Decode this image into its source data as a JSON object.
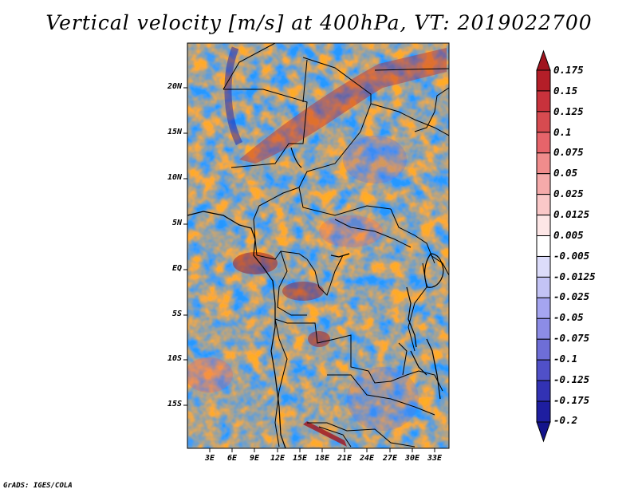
{
  "title": "Vertical velocity [m/s] at 400hPa, VT: 2019022700",
  "credit": "GrADS: IGES/COLA",
  "map": {
    "lon_range": [
      0,
      36
    ],
    "lat_range": [
      -19,
      25
    ],
    "lat_labels": [
      "20N",
      "15N",
      "10N",
      "5N",
      "EQ",
      "5S",
      "10S",
      "15S"
    ],
    "lon_labels": [
      "3E",
      "6E",
      "9E",
      "12E",
      "15E",
      "18E",
      "21E",
      "24E",
      "27E",
      "30E",
      "33E"
    ]
  },
  "colorbar": {
    "labels": [
      "0.175",
      "0.15",
      "0.125",
      "0.1",
      "0.075",
      "0.05",
      "0.025",
      "0.0125",
      "0.005",
      "-0.005",
      "-0.0125",
      "-0.025",
      "-0.05",
      "-0.075",
      "-0.1",
      "-0.125",
      "-0.175",
      "-0.2"
    ],
    "colors": [
      "#a0141e",
      "#b41e28",
      "#c8323c",
      "#d74b50",
      "#e6646a",
      "#f08c8c",
      "#f5aaaa",
      "#fac8c8",
      "#fde6e6",
      "#ffffff",
      "#dcdcfa",
      "#c3c3f5",
      "#a5a5f0",
      "#8c8ce6",
      "#6e6ed7",
      "#5050c8",
      "#3232b4",
      "#1e1ea0",
      "#14148c"
    ]
  }
}
